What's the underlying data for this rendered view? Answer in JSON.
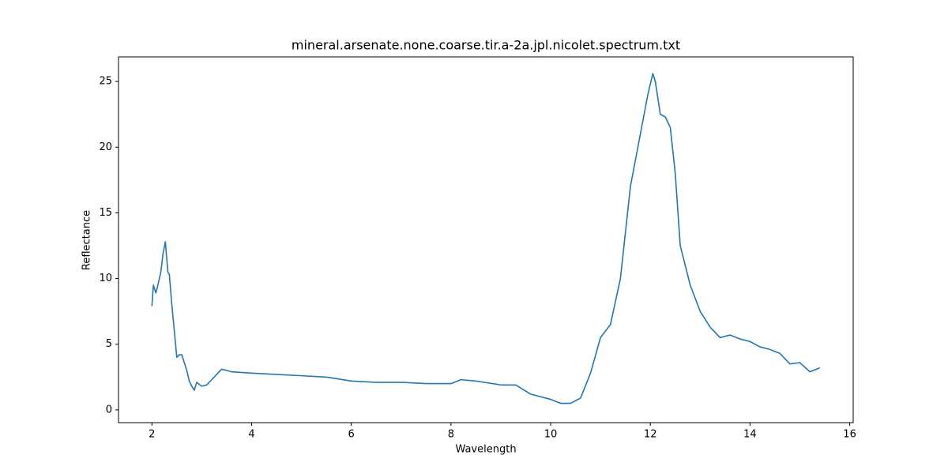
{
  "chart_data": {
    "type": "line",
    "title": "mineral.arsenate.none.coarse.tir.a-2a.jpl.nicolet.spectrum.txt",
    "x_label": "Wavelength",
    "y_label": "Reflectance",
    "x": [
      2.0,
      2.03,
      2.08,
      2.12,
      2.18,
      2.22,
      2.27,
      2.32,
      2.35,
      2.4,
      2.45,
      2.5,
      2.55,
      2.6,
      2.65,
      2.7,
      2.75,
      2.8,
      2.85,
      2.9,
      3.0,
      3.1,
      3.2,
      3.3,
      3.4,
      3.6,
      4.0,
      4.5,
      5.0,
      5.5,
      6.0,
      6.5,
      7.0,
      7.5,
      8.0,
      8.2,
      8.5,
      9.0,
      9.3,
      9.6,
      10.0,
      10.2,
      10.4,
      10.6,
      10.8,
      11.0,
      11.2,
      11.4,
      11.6,
      11.8,
      11.95,
      12.05,
      12.1,
      12.2,
      12.3,
      12.4,
      12.5,
      12.6,
      12.8,
      13.0,
      13.2,
      13.4,
      13.6,
      13.8,
      14.0,
      14.2,
      14.4,
      14.6,
      14.8,
      15.0,
      15.2,
      15.4
    ],
    "series": [
      {
        "name": "Reflectance",
        "color": "#1f77b4",
        "values": [
          7.9,
          9.5,
          8.9,
          9.5,
          10.5,
          11.8,
          12.8,
          10.5,
          10.3,
          8.0,
          6.0,
          4.0,
          4.2,
          4.2,
          3.6,
          3.0,
          2.2,
          1.8,
          1.5,
          2.1,
          1.8,
          1.9,
          2.3,
          2.7,
          3.1,
          2.9,
          2.8,
          2.7,
          2.6,
          2.5,
          2.2,
          2.1,
          2.1,
          2.0,
          2.0,
          2.3,
          2.2,
          1.9,
          1.9,
          1.2,
          0.8,
          0.5,
          0.5,
          0.9,
          2.8,
          5.5,
          6.5,
          10.0,
          17.0,
          21.0,
          24.0,
          25.6,
          25.0,
          22.5,
          22.3,
          21.5,
          18.0,
          12.5,
          9.5,
          7.5,
          6.3,
          5.5,
          5.7,
          5.4,
          5.2,
          4.8,
          4.6,
          4.3,
          3.5,
          3.6,
          2.9,
          3.2
        ]
      }
    ],
    "xlim": [
      1.33,
      16.07
    ],
    "ylim": [
      -0.97,
      26.87
    ],
    "xticks": [
      2,
      4,
      6,
      8,
      10,
      12,
      14,
      16
    ],
    "yticks": [
      0,
      5,
      10,
      15,
      20,
      25
    ]
  }
}
